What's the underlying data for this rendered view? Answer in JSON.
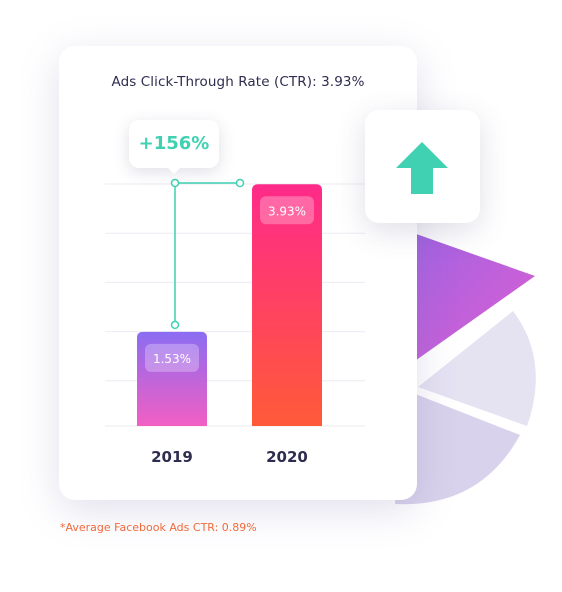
{
  "title": "Ads Click-Through Rate (CTR): 3.93%",
  "change_label": "+156%",
  "footnote": "*Average Facebook Ads CTR: 0.89%",
  "icons": {
    "trend": "up-arrow-icon"
  },
  "colors": {
    "callout_text": "#3fd1b2",
    "arrow": "#3fd1b2",
    "footnote": "#f06a3c",
    "bar2019_top": "#8b6cf2",
    "bar2019_bottom": "#f25fc3",
    "bar2020_top": "#ff2a8a",
    "bar2020_bottom": "#ff5a38"
  },
  "chart_data": {
    "type": "bar",
    "title": "Ads Click-Through Rate (CTR): 3.93%",
    "categories": [
      "2019",
      "2020"
    ],
    "values": [
      1.53,
      3.93
    ],
    "data_labels": [
      "1.53%",
      "3.93%"
    ],
    "ylim": [
      0,
      4
    ],
    "grid": true,
    "annotation": "+156%"
  }
}
